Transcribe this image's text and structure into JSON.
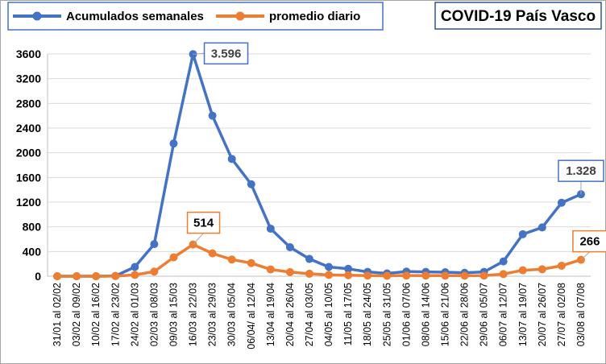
{
  "chart_data": {
    "type": "line",
    "title": "COVID-19 País Vasco",
    "xlabel": "",
    "ylabel": "",
    "ylim": [
      0,
      3600
    ],
    "yticks": [
      "0",
      "400",
      "800",
      "1200",
      "1600",
      "2000",
      "2400",
      "2800",
      "3200",
      "3600"
    ],
    "grid": "horizontal",
    "legend": "top-left",
    "categories": [
      "31/01 al 02/02",
      "03/02 al 09/02",
      "10/02 al 16/02",
      "17/02 al 23/02",
      "24/02 al 01/03",
      "02/03 al 08/03",
      "09/03 al 15/03",
      "16/03 al 22/03",
      "23/03 al 29/03",
      "30/03 al 05/04",
      "06/04/ al 12/04",
      "13/04 al 19/04",
      "20/04 al 26/04",
      "27/04 al 03/05",
      "04/05 al 10/05",
      "11/05 al 17/05",
      "18/05 al 24/05",
      "25/05 al 31/05",
      "01/06 al 07/06",
      "08/06 al 14/06",
      "15/06 al 21/06",
      "22/06 al 28/06",
      "29/06 al 05/07",
      "06/07 al 12/07",
      "13/07 al 19/07",
      "20/07 al 26/07",
      "27/07 al 02/08",
      "03/08 al 07/08"
    ],
    "series": [
      {
        "name": "Acumulados semanales",
        "color": "#4472c4",
        "values": [
          0,
          0,
          0,
          5,
          150,
          520,
          2150,
          3596,
          2600,
          1900,
          1490,
          770,
          470,
          280,
          150,
          120,
          70,
          45,
          75,
          70,
          65,
          55,
          70,
          240,
          680,
          790,
          1190,
          1328
        ]
      },
      {
        "name": "promedio diario",
        "color": "#ed7d31",
        "values": [
          0,
          0,
          0,
          2,
          21,
          75,
          305,
          514,
          370,
          270,
          213,
          110,
          67,
          40,
          21,
          17,
          10,
          7,
          11,
          10,
          9,
          8,
          10,
          35,
          97,
          113,
          170,
          266
        ]
      }
    ],
    "annotations": [
      {
        "series": 0,
        "index": 7,
        "text": "3.596"
      },
      {
        "series": 1,
        "index": 7,
        "text": "514"
      },
      {
        "series": 0,
        "index": 27,
        "text": "1.328"
      },
      {
        "series": 1,
        "index": 27,
        "text": "266"
      }
    ]
  }
}
